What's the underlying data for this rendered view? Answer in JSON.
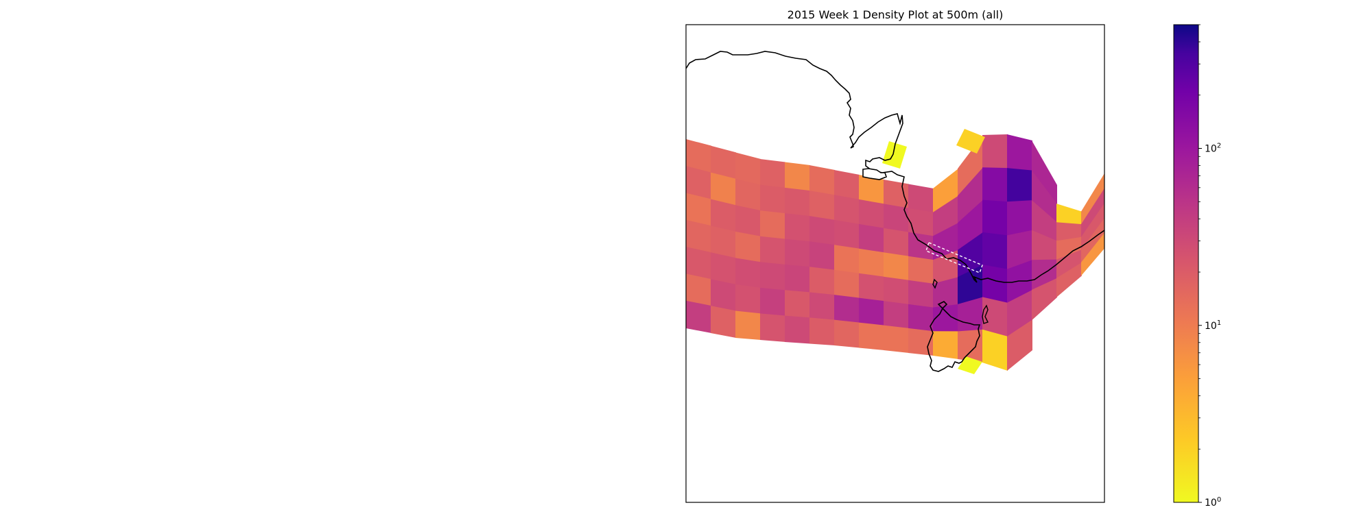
{
  "chart_data": {
    "type": "heatmap",
    "title": "2015 Week 1 Density Plot at 500m (all)",
    "map_projection": "orthographic",
    "colormap": "plasma_r",
    "color_scale": "log",
    "color_range": [
      1,
      500
    ],
    "colorbar": {
      "position": "right",
      "ticks": [
        {
          "value": 1,
          "base": "10",
          "exp": "0"
        },
        {
          "value": 10,
          "base": "10",
          "exp": "1"
        },
        {
          "value": 100,
          "base": "10",
          "exp": "2"
        }
      ]
    },
    "grid": false,
    "cells": [
      {
        "col": 0,
        "band": 0,
        "value": 14
      },
      {
        "col": 0,
        "band": 1,
        "value": 18
      },
      {
        "col": 0,
        "band": 2,
        "value": 12
      },
      {
        "col": 0,
        "band": 3,
        "value": 16
      },
      {
        "col": 0,
        "band": 4,
        "value": 22
      },
      {
        "col": 0,
        "band": 5,
        "value": 14
      },
      {
        "col": 0,
        "band": 6,
        "value": 40
      },
      {
        "col": 1,
        "band": 0,
        "value": 16
      },
      {
        "col": 1,
        "band": 1,
        "value": 9
      },
      {
        "col": 1,
        "band": 2,
        "value": 20
      },
      {
        "col": 1,
        "band": 3,
        "value": 18
      },
      {
        "col": 1,
        "band": 4,
        "value": 25
      },
      {
        "col": 1,
        "band": 5,
        "value": 30
      },
      {
        "col": 1,
        "band": 6,
        "value": 18
      },
      {
        "col": 2,
        "band": 0,
        "value": 15
      },
      {
        "col": 2,
        "band": 1,
        "value": 16
      },
      {
        "col": 2,
        "band": 2,
        "value": 22
      },
      {
        "col": 2,
        "band": 3,
        "value": 14
      },
      {
        "col": 2,
        "band": 4,
        "value": 28
      },
      {
        "col": 2,
        "band": 5,
        "value": 26
      },
      {
        "col": 2,
        "band": 6,
        "value": 8
      },
      {
        "col": 3,
        "band": 0,
        "value": 18
      },
      {
        "col": 3,
        "band": 1,
        "value": 20
      },
      {
        "col": 3,
        "band": 2,
        "value": 14
      },
      {
        "col": 3,
        "band": 3,
        "value": 24
      },
      {
        "col": 3,
        "band": 4,
        "value": 30
      },
      {
        "col": 3,
        "band": 5,
        "value": 38
      },
      {
        "col": 3,
        "band": 6,
        "value": 24
      },
      {
        "col": 4,
        "band": 0,
        "value": 8
      },
      {
        "col": 4,
        "band": 1,
        "value": 22
      },
      {
        "col": 4,
        "band": 2,
        "value": 26
      },
      {
        "col": 4,
        "band": 3,
        "value": 30
      },
      {
        "col": 4,
        "band": 4,
        "value": 34
      },
      {
        "col": 4,
        "band": 5,
        "value": 22
      },
      {
        "col": 4,
        "band": 6,
        "value": 30
      },
      {
        "col": 5,
        "band": 0,
        "value": 14
      },
      {
        "col": 5,
        "band": 1,
        "value": 18
      },
      {
        "col": 5,
        "band": 2,
        "value": 30
      },
      {
        "col": 5,
        "band": 3,
        "value": 36
      },
      {
        "col": 5,
        "band": 4,
        "value": 20
      },
      {
        "col": 5,
        "band": 5,
        "value": 30
      },
      {
        "col": 5,
        "band": 6,
        "value": 20
      },
      {
        "col": 6,
        "band": 0,
        "value": 20
      },
      {
        "col": 6,
        "band": 1,
        "value": 24
      },
      {
        "col": 6,
        "band": 2,
        "value": 28
      },
      {
        "col": 6,
        "band": 3,
        "value": 12
      },
      {
        "col": 6,
        "band": 4,
        "value": 14
      },
      {
        "col": 6,
        "band": 5,
        "value": 60
      },
      {
        "col": 6,
        "band": 6,
        "value": 16
      },
      {
        "col": 7,
        "band": 0,
        "value": 6
      },
      {
        "col": 7,
        "band": 1,
        "value": 28
      },
      {
        "col": 7,
        "band": 2,
        "value": 40
      },
      {
        "col": 7,
        "band": 3,
        "value": 10
      },
      {
        "col": 7,
        "band": 4,
        "value": 26
      },
      {
        "col": 7,
        "band": 5,
        "value": 80
      },
      {
        "col": 7,
        "band": 6,
        "value": 12
      },
      {
        "col": 8,
        "band": 0,
        "value": 18
      },
      {
        "col": 8,
        "band": 1,
        "value": 34
      },
      {
        "col": 8,
        "band": 2,
        "value": 24
      },
      {
        "col": 8,
        "band": 3,
        "value": 8
      },
      {
        "col": 8,
        "band": 4,
        "value": 28
      },
      {
        "col": 8,
        "band": 5,
        "value": 40
      },
      {
        "col": 8,
        "band": 6,
        "value": 12
      },
      {
        "col": 9,
        "band": 0,
        "value": 30
      },
      {
        "col": 9,
        "band": 1,
        "value": 28
      },
      {
        "col": 9,
        "band": 2,
        "value": 50
      },
      {
        "col": 9,
        "band": 3,
        "value": 14
      },
      {
        "col": 9,
        "band": 4,
        "value": 40
      },
      {
        "col": 9,
        "band": 5,
        "value": 70
      },
      {
        "col": 9,
        "band": 6,
        "value": 14
      },
      {
        "col": 10,
        "band": 0,
        "value": 5
      },
      {
        "col": 10,
        "band": 1,
        "value": 40
      },
      {
        "col": 10,
        "band": 2,
        "value": 80
      },
      {
        "col": 10,
        "band": 3,
        "value": 24
      },
      {
        "col": 10,
        "band": 4,
        "value": 60
      },
      {
        "col": 10,
        "band": 5,
        "value": 100
      },
      {
        "col": 10,
        "band": 6,
        "value": 4
      },
      {
        "col": 11,
        "band": 0,
        "value": 14
      },
      {
        "col": 11,
        "band": 1,
        "value": 60
      },
      {
        "col": 11,
        "band": 2,
        "value": 100
      },
      {
        "col": 11,
        "band": 3,
        "value": 300
      },
      {
        "col": 11,
        "band": 4,
        "value": 400
      },
      {
        "col": 11,
        "band": 5,
        "value": 80
      },
      {
        "col": 11,
        "band": 6,
        "value": 14
      },
      {
        "col": 12,
        "band": 0,
        "value": 30
      },
      {
        "col": 12,
        "band": 1,
        "value": 150
      },
      {
        "col": 12,
        "band": 2,
        "value": 200
      },
      {
        "col": 12,
        "band": 3,
        "value": 250
      },
      {
        "col": 12,
        "band": 4,
        "value": 200
      },
      {
        "col": 12,
        "band": 5,
        "value": 30
      },
      {
        "col": 12,
        "band": 6,
        "value": 2
      },
      {
        "col": 13,
        "band": 0,
        "value": 100
      },
      {
        "col": 13,
        "band": 1,
        "value": 350
      },
      {
        "col": 13,
        "band": 2,
        "value": 120
      },
      {
        "col": 13,
        "band": 3,
        "value": 80
      },
      {
        "col": 13,
        "band": 4,
        "value": 120
      },
      {
        "col": 13,
        "band": 5,
        "value": 40
      },
      {
        "col": 13,
        "band": 6,
        "value": 20
      },
      {
        "col": 14,
        "band": 0,
        "value": 70
      },
      {
        "col": 14,
        "band": 1,
        "value": 60
      },
      {
        "col": 14,
        "band": 2,
        "value": 40
      },
      {
        "col": 14,
        "band": 3,
        "value": 30
      },
      {
        "col": 14,
        "band": 4,
        "value": 60
      },
      {
        "col": 14,
        "band": 5,
        "value": 24
      },
      {
        "col": 15,
        "band": 1,
        "value": 2
      },
      {
        "col": 15,
        "band": 2,
        "value": 20
      },
      {
        "col": 15,
        "band": 3,
        "value": 14
      },
      {
        "col": 15,
        "band": 4,
        "value": 24
      },
      {
        "col": 15,
        "band": 5,
        "value": 18
      },
      {
        "col": 16,
        "band": 1,
        "value": 8
      },
      {
        "col": 16,
        "band": 2,
        "value": 30
      },
      {
        "col": 16,
        "band": 3,
        "value": 22
      },
      {
        "col": 16,
        "band": 4,
        "value": 16
      },
      {
        "col": 16,
        "band": 5,
        "value": 6
      },
      {
        "col": 17,
        "band": 0,
        "value": 6
      },
      {
        "col": 17,
        "band": 1,
        "value": 14
      },
      {
        "col": 17,
        "band": 2,
        "value": 26
      },
      {
        "col": 17,
        "band": 3,
        "value": 40
      }
    ],
    "special_cells": [
      {
        "where": "north-tip",
        "value": 2
      },
      {
        "where": "gulf",
        "value": 1
      },
      {
        "where": "tasmania-south",
        "value": 1
      }
    ]
  }
}
